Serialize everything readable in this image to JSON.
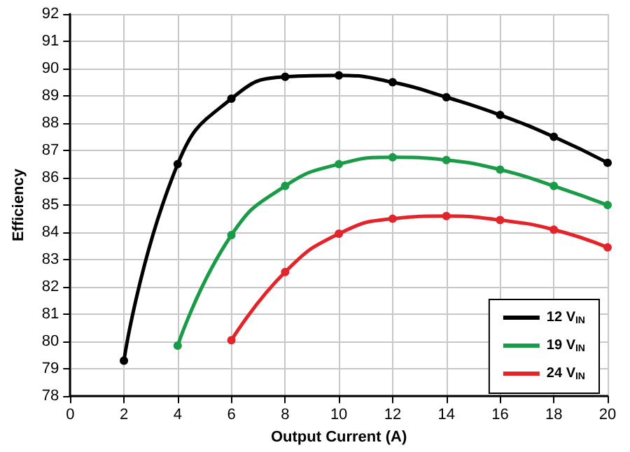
{
  "chart_data": {
    "type": "line",
    "xlabel": "Output Current (A)",
    "ylabel": "Efficiency",
    "xlim": [
      0,
      20
    ],
    "xticks": [
      0,
      2,
      4,
      6,
      8,
      10,
      12,
      14,
      16,
      18,
      20
    ],
    "ylim": [
      78,
      92
    ],
    "yticks": [
      78,
      79,
      80,
      81,
      82,
      83,
      84,
      85,
      86,
      87,
      88,
      89,
      90,
      91,
      92
    ],
    "grid": true,
    "legend": "bottom right",
    "marker": "circle",
    "line_style": "solid",
    "series": [
      {
        "name": "12 V$_{IN}$",
        "color": "#000000",
        "x": [
          2,
          4,
          6,
          8,
          10,
          12,
          14,
          16,
          18,
          20
        ],
        "values": [
          79.3,
          86.5,
          88.9,
          89.7,
          89.75,
          89.5,
          88.95,
          88.3,
          87.5,
          86.55
        ]
      },
      {
        "name": "19 V$_{IN}$",
        "color": "#1a9b48",
        "x": [
          4,
          6,
          8,
          10,
          12,
          14,
          16,
          18,
          20
        ],
        "values": [
          79.85,
          83.9,
          85.7,
          86.5,
          86.75,
          86.65,
          86.3,
          85.7,
          85.0
        ]
      },
      {
        "name": "24 V$_{IN}$",
        "color": "#e3242b",
        "x": [
          6,
          8,
          10,
          12,
          14,
          16,
          18,
          20
        ],
        "values": [
          80.05,
          82.55,
          83.95,
          84.5,
          84.6,
          84.45,
          84.1,
          83.45
        ]
      }
    ]
  }
}
